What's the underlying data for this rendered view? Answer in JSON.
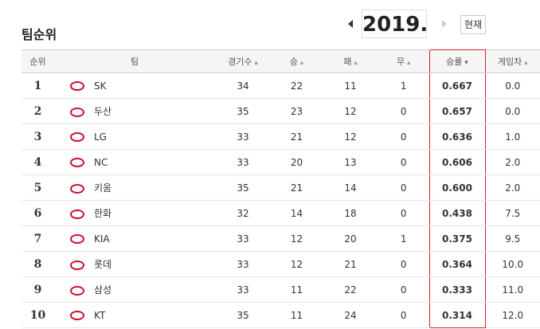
{
  "header": {
    "title": "팀순위",
    "year": "2019.",
    "button": "현재"
  },
  "table": {
    "columns": [
      "순위",
      "팀",
      "경기수",
      "승",
      "패",
      "무",
      "승률",
      "게임차"
    ],
    "rows": [
      [
        "1",
        "SK",
        "34",
        "22",
        "11",
        "1",
        "0.667",
        "0.0"
      ],
      [
        "2",
        "두산",
        "35",
        "23",
        "12",
        "0",
        "0.657",
        "0.0"
      ],
      [
        "3",
        "LG",
        "33",
        "21",
        "12",
        "0",
        "0.636",
        "1.0"
      ],
      [
        "4",
        "NC",
        "33",
        "20",
        "13",
        "0",
        "0.606",
        "2.0"
      ],
      [
        "5",
        "키움",
        "35",
        "21",
        "14",
        "0",
        "0.600",
        "2.0"
      ],
      [
        "6",
        "한화",
        "32",
        "14",
        "18",
        "0",
        "0.438",
        "7.5"
      ],
      [
        "7",
        "KIA",
        "33",
        "12",
        "20",
        "1",
        "0.375",
        "9.5"
      ],
      [
        "8",
        "롯데",
        "33",
        "12",
        "21",
        "0",
        "0.364",
        "10.0"
      ],
      [
        "9",
        "삼성",
        "33",
        "11",
        "22",
        "0",
        "0.333",
        "11.0"
      ],
      [
        "10",
        "KT",
        "35",
        "11",
        "24",
        "0",
        "0.314",
        "12.0"
      ]
    ]
  }
}
